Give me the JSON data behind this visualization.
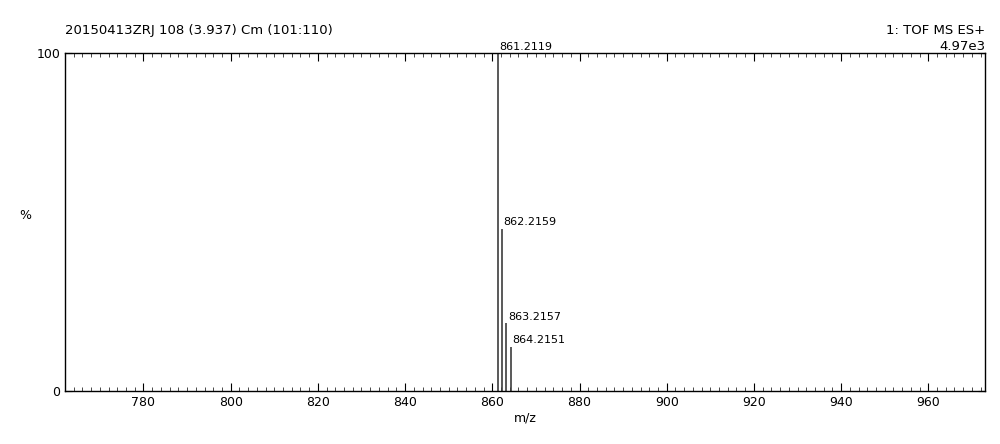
{
  "title_left": "20150413ZRJ 108 (3.937) Cm (101:110)",
  "title_right_line1": "1: TOF MS ES+",
  "title_right_line2": "4.97e3",
  "peaks": [
    {
      "mz": 861.2119,
      "intensity": 100.0,
      "label": "861.2119"
    },
    {
      "mz": 862.2159,
      "intensity": 48.0,
      "label": "862.2159"
    },
    {
      "mz": 863.2157,
      "intensity": 20.0,
      "label": "863.2157"
    },
    {
      "mz": 864.2151,
      "intensity": 13.0,
      "label": "864.2151"
    }
  ],
  "xmin": 762,
  "xmax": 973,
  "ymin": 0,
  "ymax": 100,
  "xlabel": "m/z",
  "ylabel": "%",
  "xticks": [
    780,
    800,
    820,
    840,
    860,
    880,
    900,
    920,
    940,
    960
  ],
  "peak_color": "#3d3d3d",
  "background_color": "#ffffff",
  "border_color": "#000000",
  "title_fontsize": 9.5,
  "axis_label_fontsize": 9,
  "tick_fontsize": 9
}
